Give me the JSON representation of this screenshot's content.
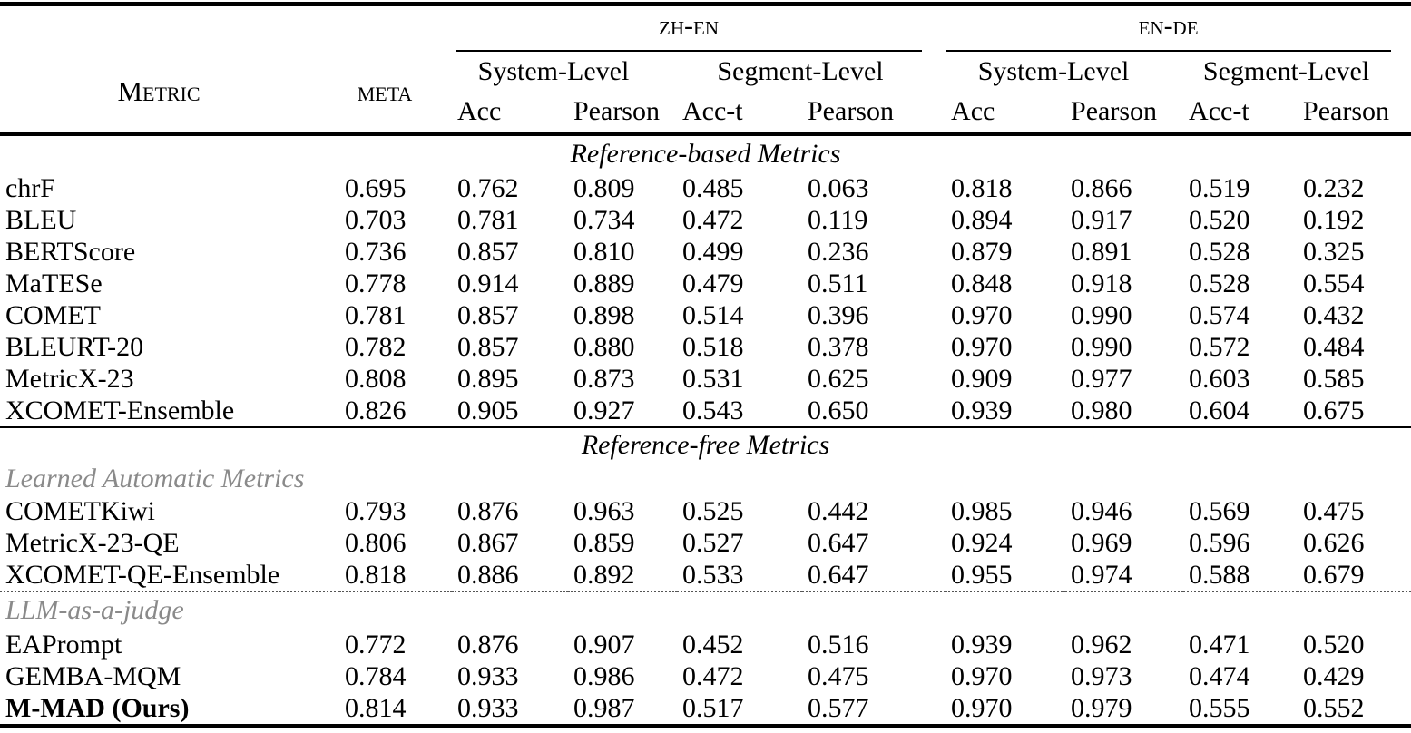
{
  "colors": {
    "text": "#000000",
    "subsection_gray": "#8a8a8a",
    "background": "#ffffff"
  },
  "table": {
    "header": {
      "metric_label": "Metric",
      "meta_label": "meta",
      "groups": [
        {
          "label": "zh-en",
          "sublevels": [
            "System-Level",
            "Segment-Level"
          ],
          "cols": [
            "Acc",
            "Pearson",
            "Acc-t",
            "Pearson"
          ]
        },
        {
          "label": "en-de",
          "sublevels": [
            "System-Level",
            "Segment-Level"
          ],
          "cols": [
            "Acc",
            "Pearson",
            "Acc-t",
            "Pearson"
          ]
        }
      ]
    },
    "sections": [
      {
        "title": "Reference-based Metrics",
        "rows": [
          {
            "metric": "chrF",
            "bold": false,
            "values": [
              "0.695",
              "0.762",
              "0.809",
              "0.485",
              "0.063",
              "0.818",
              "0.866",
              "0.519",
              "0.232"
            ]
          },
          {
            "metric": "BLEU",
            "bold": false,
            "values": [
              "0.703",
              "0.781",
              "0.734",
              "0.472",
              "0.119",
              "0.894",
              "0.917",
              "0.520",
              "0.192"
            ]
          },
          {
            "metric": "BERTScore",
            "bold": false,
            "values": [
              "0.736",
              "0.857",
              "0.810",
              "0.499",
              "0.236",
              "0.879",
              "0.891",
              "0.528",
              "0.325"
            ]
          },
          {
            "metric": "MaTESe",
            "bold": false,
            "values": [
              "0.778",
              "0.914",
              "0.889",
              "0.479",
              "0.511",
              "0.848",
              "0.918",
              "0.528",
              "0.554"
            ]
          },
          {
            "metric": "COMET",
            "bold": false,
            "values": [
              "0.781",
              "0.857",
              "0.898",
              "0.514",
              "0.396",
              "0.970",
              "0.990",
              "0.574",
              "0.432"
            ]
          },
          {
            "metric": "BLEURT-20",
            "bold": false,
            "values": [
              "0.782",
              "0.857",
              "0.880",
              "0.518",
              "0.378",
              "0.970",
              "0.990",
              "0.572",
              "0.484"
            ]
          },
          {
            "metric": "MetricX-23",
            "bold": false,
            "values": [
              "0.808",
              "0.895",
              "0.873",
              "0.531",
              "0.625",
              "0.909",
              "0.977",
              "0.603",
              "0.585"
            ]
          },
          {
            "metric": "XCOMET-Ensemble",
            "bold": false,
            "values": [
              "0.826",
              "0.905",
              "0.927",
              "0.543",
              "0.650",
              "0.939",
              "0.980",
              "0.604",
              "0.675"
            ]
          }
        ]
      },
      {
        "title": "Reference-free Metrics",
        "subsections": [
          {
            "label": "Learned Automatic Metrics",
            "divider": "none",
            "rows": [
              {
                "metric": "COMETKiwi",
                "bold": false,
                "values": [
                  "0.793",
                  "0.876",
                  "0.963",
                  "0.525",
                  "0.442",
                  "0.985",
                  "0.946",
                  "0.569",
                  "0.475"
                ]
              },
              {
                "metric": "MetricX-23-QE",
                "bold": false,
                "values": [
                  "0.806",
                  "0.867",
                  "0.859",
                  "0.527",
                  "0.647",
                  "0.924",
                  "0.969",
                  "0.596",
                  "0.626"
                ]
              },
              {
                "metric": "XCOMET-QE-Ensemble",
                "bold": false,
                "values": [
                  "0.818",
                  "0.886",
                  "0.892",
                  "0.533",
                  "0.647",
                  "0.955",
                  "0.974",
                  "0.588",
                  "0.679"
                ]
              }
            ]
          },
          {
            "label": "LLM-as-a-judge",
            "divider": "dotted",
            "rows": [
              {
                "metric": "EAPrompt",
                "bold": false,
                "values": [
                  "0.772",
                  "0.876",
                  "0.907",
                  "0.452",
                  "0.516",
                  "0.939",
                  "0.962",
                  "0.471",
                  "0.520"
                ]
              },
              {
                "metric": "GEMBA-MQM",
                "bold": false,
                "values": [
                  "0.784",
                  "0.933",
                  "0.986",
                  "0.472",
                  "0.475",
                  "0.970",
                  "0.973",
                  "0.474",
                  "0.429"
                ]
              },
              {
                "metric": "M-MAD (Ours)",
                "bold": true,
                "values": [
                  "0.814",
                  "0.933",
                  "0.987",
                  "0.517",
                  "0.577",
                  "0.970",
                  "0.979",
                  "0.555",
                  "0.552"
                ]
              }
            ]
          }
        ]
      }
    ]
  }
}
